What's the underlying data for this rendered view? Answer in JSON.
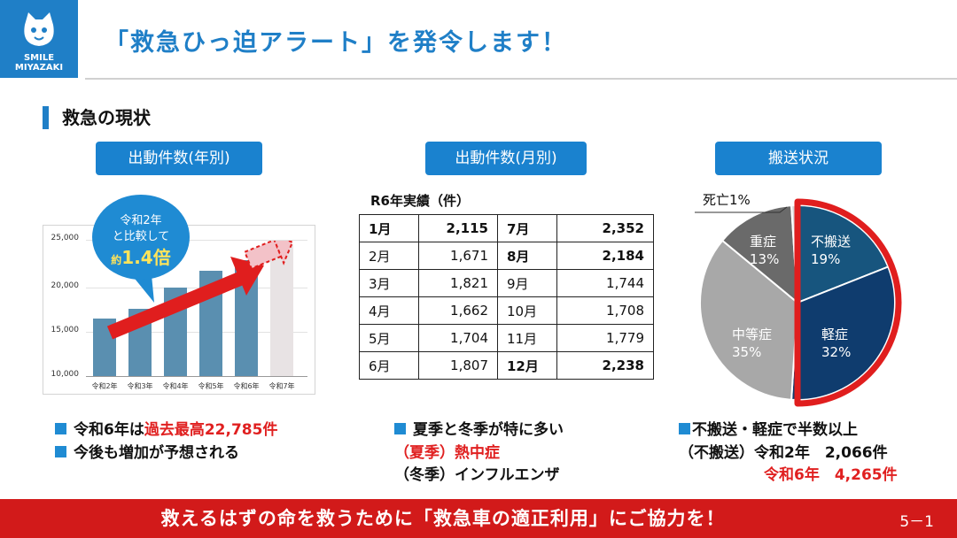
{
  "logo": {
    "line1": "SMILE",
    "line2": "MIYAZAKI"
  },
  "title": "「救急ひっ迫アラート」を発令します！",
  "section_title": "救急の現状",
  "panels": {
    "annual": {
      "label": "出動件数(年別)"
    },
    "monthly": {
      "label": "出動件数(月別)"
    },
    "transport": {
      "label": "搬送状況"
    }
  },
  "annual_chart": {
    "bubble": {
      "line1": "令和2年",
      "line2": "と比較して",
      "prefix": "約",
      "value": "1.4倍"
    },
    "y_ticks": [
      "25,000",
      "20,000",
      "15,000",
      "10,000"
    ]
  },
  "monthly_table": {
    "caption": "R6年実績（件）",
    "rows": [
      {
        "m1": "1月",
        "v1": "2,115",
        "m2": "7月",
        "v2": "2,352"
      },
      {
        "m1": "2月",
        "v1": "1,671",
        "m2": "8月",
        "v2": "2,184"
      },
      {
        "m1": "3月",
        "v1": "1,821",
        "m2": "9月",
        "v2": "1,744"
      },
      {
        "m1": "4月",
        "v1": "1,662",
        "m2": "10月",
        "v2": "1,708"
      },
      {
        "m1": "5月",
        "v1": "1,704",
        "m2": "11月",
        "v2": "1,779"
      },
      {
        "m1": "6月",
        "v1": "1,807",
        "m2": "12月",
        "v2": "2,238"
      }
    ]
  },
  "chart_data": [
    {
      "type": "bar",
      "categories": [
        "令和2年",
        "令和3年",
        "令和4年",
        "令和5年",
        "令和6年",
        "令和7年"
      ],
      "values": [
        16300,
        17400,
        19700,
        21600,
        22785,
        24500
      ],
      "ylim": [
        10000,
        26000
      ],
      "y_ticks": [
        10000,
        15000,
        20000,
        25000
      ],
      "highlight": "令和7年 shown as lighter projected bar"
    },
    {
      "type": "pie",
      "labels": [
        "不搬送",
        "軽症",
        "中等症",
        "重症",
        "死亡"
      ],
      "values": [
        19,
        32,
        35,
        13,
        1
      ],
      "value_labels": [
        "19%",
        "32%",
        "35%",
        "13%",
        "1%"
      ],
      "colors": [
        "#17557e",
        "#0f3c6e",
        "#a8a8a8",
        "#6a6a6a",
        "#d8d8d8"
      ]
    }
  ],
  "pie_labels": {
    "fuhansou": {
      "name": "不搬送",
      "pct": "19%"
    },
    "keishou": {
      "name": "軽症",
      "pct": "32%"
    },
    "chuutou": {
      "name": "中等症",
      "pct": "35%"
    },
    "juushou": {
      "name": "重症",
      "pct": "13%"
    },
    "shibou": "死亡1%"
  },
  "bullets": {
    "left": {
      "b1_pre": "令和6年は",
      "b1_red": "過去最高22,785件",
      "b2": "今後も増加が予想される"
    },
    "middle": {
      "b1": "夏季と冬季が特に多い",
      "l2": "（夏季）熱中症",
      "l3": "（冬季）インフルエンザ"
    },
    "right": {
      "b1": "不搬送・軽症で半数以上",
      "l2": "（不搬送）令和2年　2,066件",
      "l3": "令和6年　4,265件"
    }
  },
  "footer": {
    "text": "救えるはずの命を救うために「救急車の適正利用」にご協力を！",
    "page": "5－1"
  },
  "colors": {
    "brand_blue": "#1f7fc7",
    "alert_red": "#e02020",
    "footer_red": "#d21a1a",
    "bar_blue": "#5a8fb0"
  }
}
